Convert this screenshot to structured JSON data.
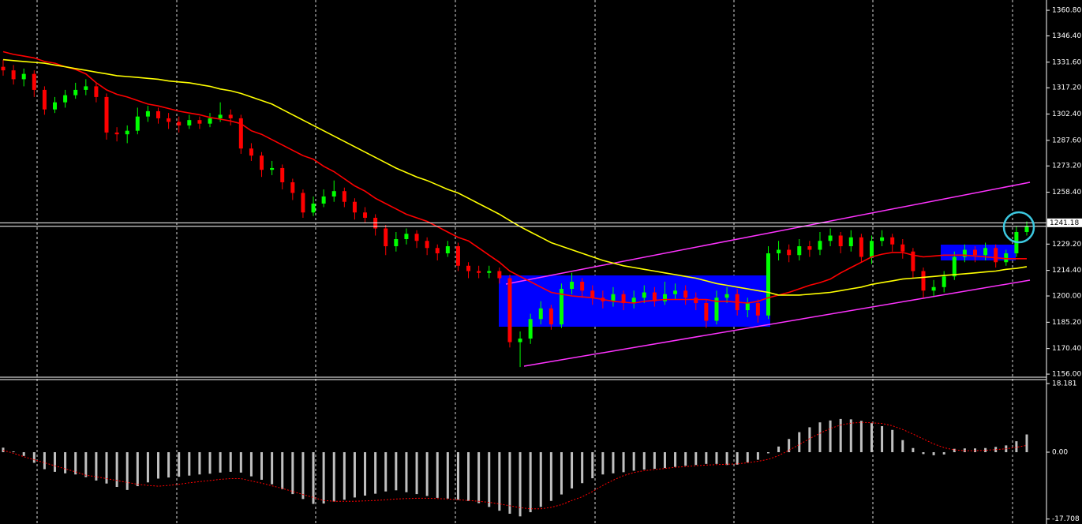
{
  "chart_data": [
    {
      "type": "candlestick",
      "open": [
        1329,
        1327,
        1322,
        1325,
        1316,
        1305,
        1309,
        1313,
        1316,
        1318,
        1312,
        1292,
        1291,
        1293,
        1301,
        1304,
        1300,
        1298,
        1296,
        1299,
        1297,
        1300,
        1302,
        1300,
        1283,
        1279,
        1271,
        1272,
        1264,
        1258,
        1247,
        1252,
        1256,
        1259,
        1253,
        1247,
        1244,
        1238,
        1228,
        1232,
        1235,
        1231,
        1227,
        1224,
        1228,
        1217,
        1214,
        1213,
        1214,
        1210,
        1174,
        1176,
        1187,
        1193,
        1184,
        1204,
        1208,
        1203,
        1199,
        1197,
        1201,
        1196,
        1199,
        1202,
        1197,
        1201,
        1203,
        1199,
        1196,
        1186,
        1199,
        1201,
        1192,
        1196,
        1189,
        1224,
        1226,
        1223,
        1228,
        1226,
        1231,
        1234,
        1228,
        1233,
        1222,
        1231,
        1233,
        1229,
        1225,
        1214,
        1203,
        1205,
        1211,
        1222,
        1226,
        1223,
        1227,
        1219,
        1224,
        1236
      ],
      "high": [
        1333,
        1330,
        1328,
        1327,
        1318,
        1312,
        1316,
        1320,
        1322,
        1320,
        1314,
        1295,
        1296,
        1306,
        1307,
        1306,
        1303,
        1301,
        1302,
        1301,
        1303,
        1309,
        1305,
        1302,
        1286,
        1281,
        1276,
        1274,
        1266,
        1260,
        1256,
        1260,
        1265,
        1261,
        1255,
        1250,
        1246,
        1240,
        1236,
        1238,
        1237,
        1233,
        1229,
        1231,
        1230,
        1219,
        1217,
        1217,
        1216,
        1212,
        1180,
        1190,
        1197,
        1195,
        1207,
        1213,
        1210,
        1206,
        1203,
        1205,
        1203,
        1203,
        1206,
        1205,
        1208,
        1207,
        1206,
        1202,
        1198,
        1203,
        1205,
        1204,
        1199,
        1198,
        1228,
        1231,
        1229,
        1232,
        1231,
        1236,
        1238,
        1236,
        1237,
        1235,
        1234,
        1237,
        1235,
        1232,
        1227,
        1216,
        1209,
        1214,
        1225,
        1229,
        1228,
        1230,
        1229,
        1226,
        1239,
        1242
      ],
      "low": [
        1324,
        1319,
        1318,
        1312,
        1302,
        1303,
        1306,
        1311,
        1313,
        1309,
        1288,
        1287,
        1286,
        1291,
        1298,
        1297,
        1294,
        1292,
        1294,
        1294,
        1295,
        1298,
        1296,
        1280,
        1276,
        1267,
        1268,
        1260,
        1254,
        1244,
        1245,
        1250,
        1253,
        1250,
        1243,
        1241,
        1234,
        1223,
        1225,
        1229,
        1227,
        1223,
        1220,
        1222,
        1214,
        1210,
        1210,
        1210,
        1207,
        1171,
        1160,
        1173,
        1184,
        1181,
        1182,
        1201,
        1199,
        1195,
        1193,
        1194,
        1192,
        1193,
        1196,
        1194,
        1195,
        1198,
        1195,
        1192,
        1182,
        1184,
        1196,
        1189,
        1188,
        1185,
        1187,
        1220,
        1219,
        1220,
        1222,
        1223,
        1228,
        1224,
        1225,
        1219,
        1218,
        1228,
        1225,
        1221,
        1210,
        1199,
        1200,
        1202,
        1209,
        1219,
        1219,
        1220,
        1216,
        1217,
        1222,
        1234
      ],
      "close": [
        1327,
        1322,
        1325,
        1316,
        1305,
        1309,
        1313,
        1316,
        1318,
        1312,
        1292,
        1291,
        1293,
        1301,
        1304,
        1300,
        1298,
        1296,
        1299,
        1297,
        1300,
        1302,
        1300,
        1283,
        1279,
        1271,
        1272,
        1264,
        1258,
        1247,
        1252,
        1256,
        1259,
        1253,
        1247,
        1244,
        1238,
        1228,
        1232,
        1235,
        1231,
        1227,
        1224,
        1228,
        1217,
        1214,
        1213,
        1214,
        1210,
        1174,
        1176,
        1187,
        1193,
        1184,
        1204,
        1208,
        1203,
        1199,
        1197,
        1201,
        1196,
        1199,
        1202,
        1197,
        1201,
        1203,
        1199,
        1196,
        1186,
        1199,
        1201,
        1192,
        1196,
        1189,
        1224,
        1226,
        1223,
        1228,
        1226,
        1231,
        1234,
        1228,
        1233,
        1222,
        1231,
        1233,
        1229,
        1225,
        1214,
        1203,
        1205,
        1211,
        1222,
        1226,
        1223,
        1227,
        1219,
        1224,
        1236,
        1239
      ],
      "up_color": "#00ff00",
      "down_color": "#ff0000",
      "series": [
        {
          "color": "#ff0000",
          "values": [
            1337.5,
            1336,
            1335,
            1334,
            1332,
            1331,
            1329,
            1327.5,
            1325,
            1320,
            1316,
            1313.5,
            1312,
            1310,
            1308,
            1307,
            1305.5,
            1304,
            1303,
            1302,
            1300.5,
            1299.5,
            1298.5,
            1297,
            1293,
            1291,
            1288,
            1285,
            1282,
            1279,
            1277,
            1273,
            1270,
            1266,
            1262,
            1259,
            1255,
            1252,
            1249,
            1246,
            1244,
            1242,
            1239,
            1236,
            1233,
            1231,
            1227,
            1223,
            1219,
            1214,
            1211,
            1208,
            1205,
            1202,
            1201,
            1200,
            1199.5,
            1199,
            1198,
            1197,
            1196.5,
            1196,
            1197,
            1197.5,
            1198,
            1198,
            1198,
            1198,
            1198,
            1197,
            1197,
            1196.5,
            1196,
            1197,
            1199,
            1200.5,
            1202,
            1204,
            1206,
            1207.5,
            1209.5,
            1213,
            1216,
            1219,
            1222,
            1223.5,
            1224.5,
            1224.5,
            1223,
            1222,
            1222.5,
            1223,
            1223,
            1223,
            1222.5,
            1222,
            1221.5,
            1221,
            1221,
            1221
          ]
        },
        {
          "color": "#ffff00",
          "values": [
            1333,
            1332.5,
            1332,
            1331.5,
            1331,
            1330,
            1329,
            1328,
            1327,
            1326,
            1325,
            1324,
            1323.5,
            1323,
            1322.5,
            1322,
            1321,
            1320.5,
            1320,
            1319,
            1318,
            1316.5,
            1315.5,
            1314,
            1312,
            1310,
            1308,
            1305,
            1302,
            1299,
            1296,
            1293,
            1290,
            1287,
            1284,
            1281,
            1278,
            1275,
            1272,
            1269.5,
            1267,
            1265,
            1262.5,
            1260,
            1258,
            1255,
            1252,
            1249,
            1246,
            1242.5,
            1239,
            1236,
            1233,
            1230,
            1228,
            1226,
            1224,
            1222,
            1220,
            1218.5,
            1217,
            1216,
            1215,
            1214,
            1213,
            1212,
            1211,
            1210,
            1208.5,
            1207,
            1206,
            1205,
            1204,
            1203,
            1202,
            1200.5,
            1200.5,
            1200.5,
            1201,
            1201.5,
            1202,
            1203,
            1204,
            1205,
            1206.5,
            1207.5,
            1208.5,
            1209.5,
            1210,
            1210.5,
            1211,
            1211.5,
            1212,
            1212.5,
            1213,
            1213.5,
            1214,
            1215,
            1215.5,
            1216.5
          ]
        }
      ],
      "price_lines": [
        1241.18,
        1239.2
      ],
      "ylim": [
        1154.7,
        1366.6
      ],
      "yticks": [
        {
          "value": 1360.8,
          "label": "1360.80"
        },
        {
          "value": 1346.4,
          "label": "1346.40"
        },
        {
          "value": 1331.6,
          "label": "1331.60"
        },
        {
          "value": 1317.2,
          "label": "1317.20"
        },
        {
          "value": 1302.4,
          "label": "1302.40"
        },
        {
          "value": 1287.6,
          "label": "1287.60"
        },
        {
          "value": 1273.2,
          "label": "1273.20"
        },
        {
          "value": 1258.4,
          "label": "1258.40"
        },
        {
          "value": 1229.2,
          "label": "1229.20"
        },
        {
          "value": 1214.4,
          "label": "1214.40"
        },
        {
          "value": 1200,
          "label": "1200.00"
        },
        {
          "value": 1185.2,
          "label": "1185.20"
        },
        {
          "value": 1170.4,
          "label": "1170.40"
        },
        {
          "value": 1156,
          "label": "1156.00"
        }
      ]
    },
    {
      "type": "bar",
      "values": [
        1.2,
        0.2,
        -1,
        -2.8,
        -4.5,
        -5.2,
        -5.6,
        -5.9,
        -6.6,
        -7.5,
        -8.3,
        -9.2,
        -10,
        -9,
        -8,
        -7,
        -6.7,
        -6.5,
        -6.2,
        -5.9,
        -5.7,
        -5.4,
        -5.2,
        -5.4,
        -6.4,
        -7.3,
        -8.5,
        -9.8,
        -11.1,
        -12.4,
        -13.7,
        -13.6,
        -13.1,
        -12.6,
        -12,
        -11.5,
        -11,
        -10.4,
        -10.1,
        -10.6,
        -11.1,
        -11.6,
        -12.1,
        -12.3,
        -12.6,
        -12.9,
        -13.5,
        -14.5,
        -15.5,
        -16.3,
        -17,
        -15.9,
        -14.5,
        -12.9,
        -11.2,
        -9.6,
        -8.2,
        -6.9,
        -5.9,
        -5.6,
        -5.3,
        -4.9,
        -4.6,
        -4.4,
        -4.2,
        -3.9,
        -3.6,
        -3.4,
        -3.1,
        -3.1,
        -3.4,
        -3.3,
        -2.7,
        -2,
        -0.3,
        1.5,
        3.5,
        5.3,
        6.6,
        7.9,
        8.4,
        8.8,
        8.7,
        8.3,
        7.7,
        6.9,
        5.9,
        3.2,
        1.1,
        -0.5,
        -0.8,
        -0.6,
        0.9,
        1,
        1,
        1.1,
        1.4,
        1.8,
        2.9,
        4.7
      ],
      "color": "#c0c0c0",
      "series": [
        {
          "color": "#ff0000",
          "values": [
            0.5,
            -0.3,
            -1.2,
            -2,
            -2.8,
            -3.6,
            -4.4,
            -5.2,
            -6.1,
            -6.5,
            -7,
            -7.5,
            -8,
            -8.5,
            -8.8,
            -9,
            -8.8,
            -8.5,
            -8.1,
            -7.8,
            -7.5,
            -7.2,
            -7,
            -7,
            -7.6,
            -8.2,
            -8.9,
            -9.6,
            -10.4,
            -11.2,
            -12,
            -12.8,
            -13,
            -13,
            -13,
            -12.9,
            -12.8,
            -12.6,
            -12.4,
            -12.3,
            -12.2,
            -12.2,
            -12.3,
            -12.4,
            -12.6,
            -12.8,
            -13,
            -13.3,
            -13.7,
            -14.2,
            -14.7,
            -15,
            -15,
            -14.6,
            -13.9,
            -12.8,
            -11.8,
            -10.4,
            -8.8,
            -7.4,
            -6.2,
            -5.4,
            -4.9,
            -4.6,
            -4.3,
            -4,
            -3.8,
            -3.6,
            -3.4,
            -3.3,
            -3.2,
            -3.1,
            -2.8,
            -2.4,
            -1.9,
            -0.9,
            0.5,
            2,
            3.6,
            5,
            6.3,
            7.2,
            7.7,
            7.9,
            7.8,
            7.6,
            7,
            6,
            4.8,
            3.5,
            2.2,
            1.2,
            0.6,
            0.4,
            0.4,
            0.5,
            0.7,
            0.9,
            1.3,
            1.8
          ]
        }
      ],
      "ylim": [
        -19.02,
        19.23
      ],
      "yticks": [
        18.181,
        {
          "value": 0,
          "label": "0.00"
        },
        -17.708
      ]
    }
  ]
}
